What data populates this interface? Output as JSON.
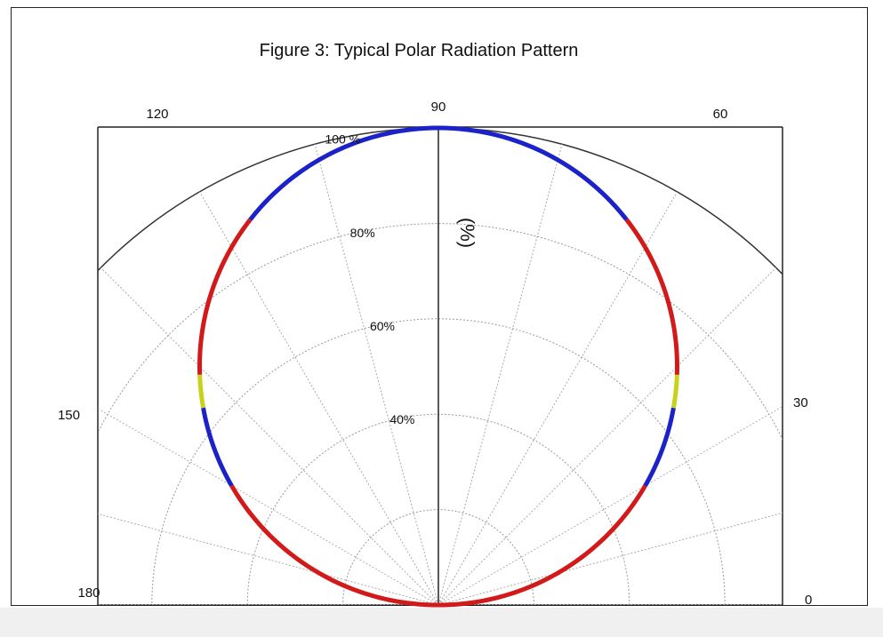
{
  "chart_data": {
    "type": "polar",
    "title": "Figure 3:  Typical Polar Radiation Pattern",
    "ylabel": "(%)",
    "angle_range_deg": [
      0,
      180
    ],
    "radial_range": [
      0,
      100
    ],
    "angle_tick_labels": [
      {
        "angle": 0,
        "label": "0"
      },
      {
        "angle": 30,
        "label": "30"
      },
      {
        "angle": 60,
        "label": "60"
      },
      {
        "angle": 90,
        "label": "90"
      },
      {
        "angle": 120,
        "label": "120"
      },
      {
        "angle": 150,
        "label": "150"
      },
      {
        "angle": 180,
        "label": "180"
      }
    ],
    "radial_tick_labels": [
      {
        "value": 40,
        "label": "40%"
      },
      {
        "value": 60,
        "label": "60%"
      },
      {
        "value": 80,
        "label": "80%"
      },
      {
        "value": 100,
        "label": "100 %"
      }
    ],
    "pattern": "sin",
    "segments": [
      {
        "from": 0,
        "to": 30,
        "color": "#d21a1a"
      },
      {
        "from": 30,
        "to": 40,
        "color": "#1a22c8"
      },
      {
        "from": 40,
        "to": 44,
        "color": "#c8d21a"
      },
      {
        "from": 44,
        "to": 64,
        "color": "#d21a1a"
      },
      {
        "from": 64,
        "to": 116,
        "color": "#1a22c8"
      },
      {
        "from": 116,
        "to": 136,
        "color": "#d21a1a"
      },
      {
        "from": 136,
        "to": 140,
        "color": "#c8d21a"
      },
      {
        "from": 140,
        "to": 150,
        "color": "#1a22c8"
      },
      {
        "from": 150,
        "to": 180,
        "color": "#d21a1a"
      }
    ],
    "grid": true
  }
}
